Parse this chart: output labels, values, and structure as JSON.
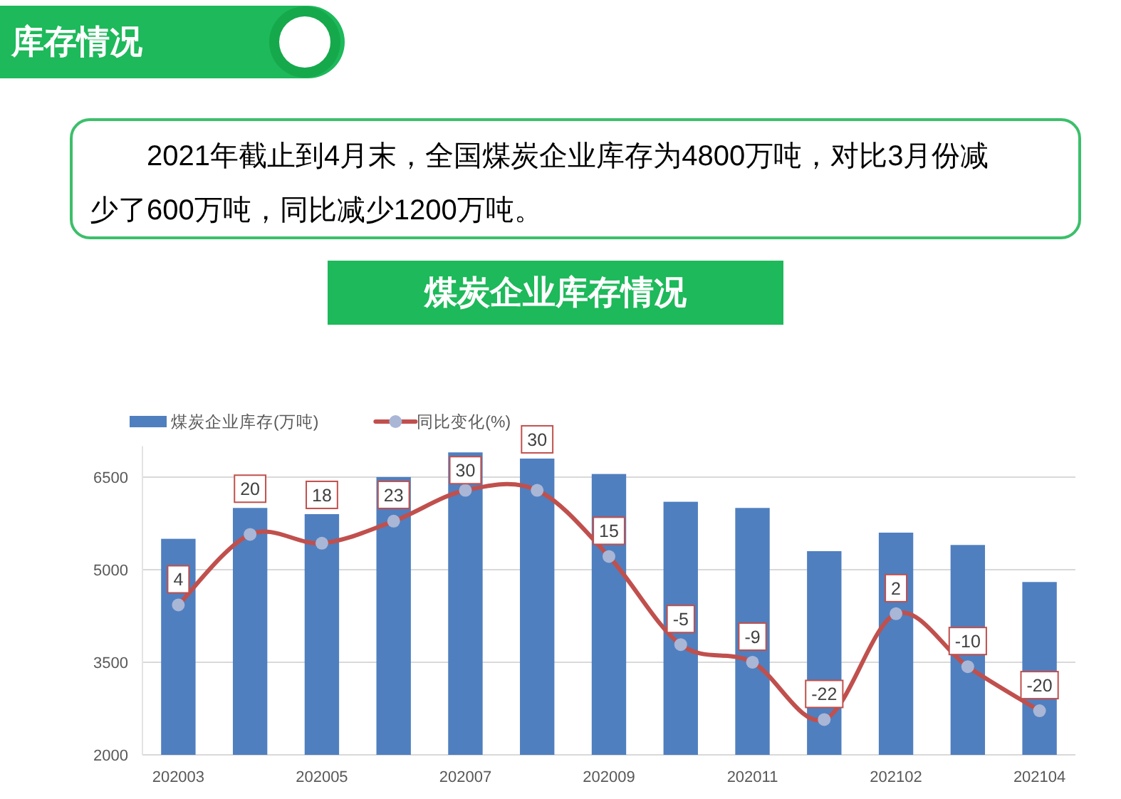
{
  "chart_data": {
    "type": "bar",
    "title": "煤炭企业库存情况",
    "annotations": [
      "库存情况",
      "2021年截止到4月末，全国煤炭企业库存为4800万吨，对比3月份减少了600万吨，同比减少1200万吨。"
    ],
    "categories": [
      "202003",
      null,
      "202005",
      null,
      "202007",
      null,
      "202009",
      null,
      "202011",
      null,
      "202102",
      null,
      "202104"
    ],
    "series": [
      {
        "name": "煤炭企业库存(万吨)",
        "color": "#4f7fbf",
        "values": [
          5500,
          6000,
          5900,
          6500,
          6900,
          6800,
          6550,
          6100,
          6000,
          5300,
          5600,
          5400,
          4800
        ]
      },
      {
        "name": "同比变化(%)",
        "type": "line",
        "axis": "y2",
        "color": "#c0504d",
        "marker": "circle",
        "values": [
          4,
          20,
          18,
          23,
          30,
          30,
          15,
          -5,
          -9,
          -22,
          2,
          -10,
          -20
        ],
        "value_labels": [
          "4",
          "20",
          "18",
          "23",
          "30",
          "30",
          "15",
          "-5",
          "-9",
          "-22",
          "2",
          "-10",
          "-20"
        ]
      }
    ],
    "ylim": [
      2000,
      7000
    ],
    "yticks": [
      2000,
      3500,
      5000,
      6500
    ],
    "y2lim": [
      -30,
      40
    ],
    "grid": "y",
    "legend": "top left"
  }
}
